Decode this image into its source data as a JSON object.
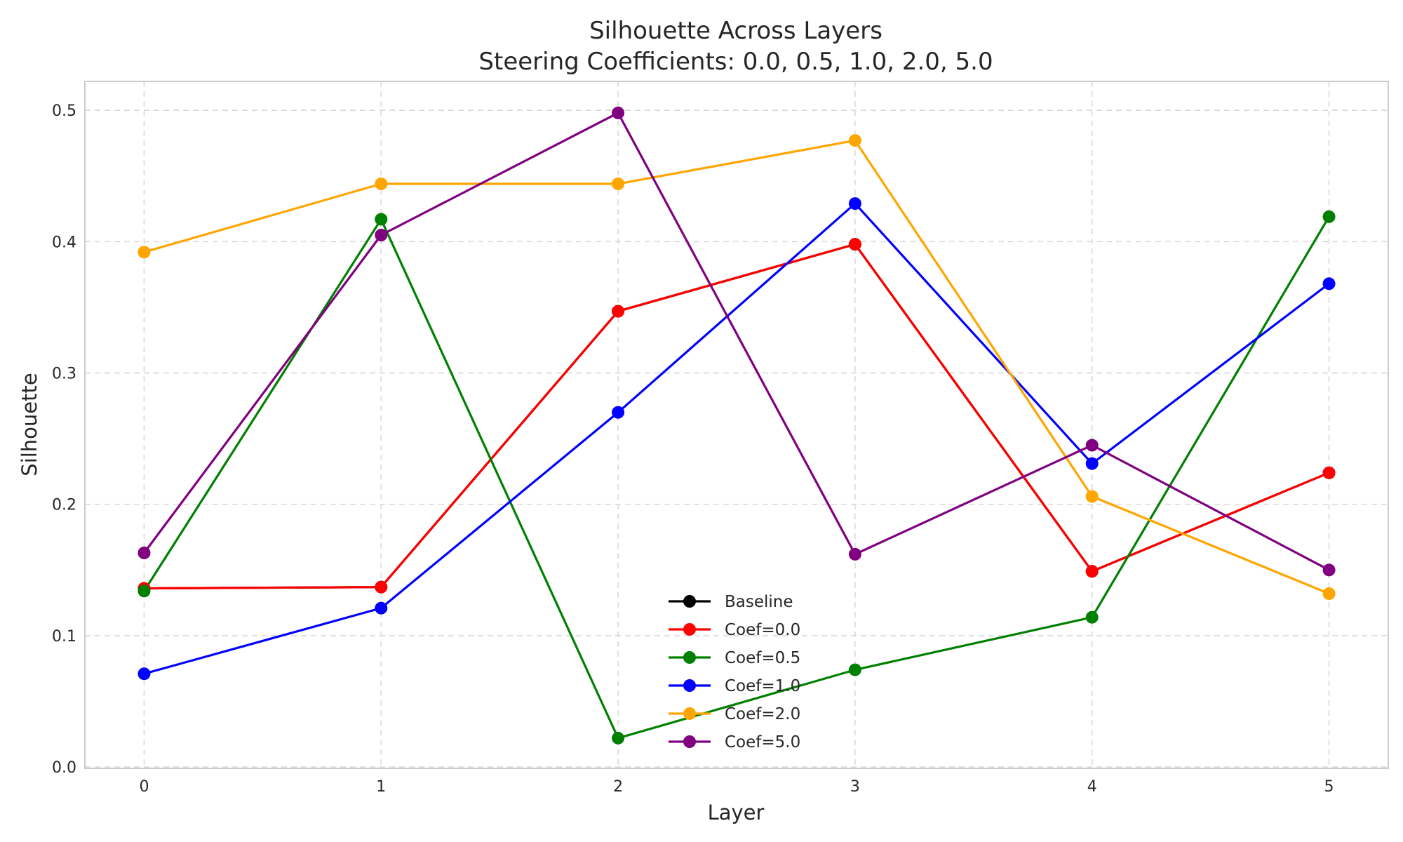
{
  "chart_data": {
    "type": "line",
    "title": "Silhouette Across Layers",
    "subtitle": "Steering Coefficients: 0.0, 0.5, 1.0, 2.0, 5.0",
    "xlabel": "Layer",
    "ylabel": "Silhouette",
    "x": [
      0,
      1,
      2,
      3,
      4,
      5
    ],
    "xlim": [
      -0.25,
      5.25
    ],
    "ylim": [
      -0.001,
      0.522
    ],
    "yticks": [
      0.0,
      0.1,
      0.2,
      0.3,
      0.4,
      0.5
    ],
    "ytick_labels": [
      "0.0",
      "0.1",
      "0.2",
      "0.3",
      "0.4",
      "0.5"
    ],
    "xtick_labels": [
      "0",
      "1",
      "2",
      "3",
      "4",
      "5"
    ],
    "grid": true,
    "legend_position": "lower-center",
    "series": [
      {
        "name": "Baseline",
        "color": "#000000",
        "values": [
          0.136,
          0.137,
          0.347,
          0.398,
          0.149,
          0.224
        ]
      },
      {
        "name": "Coef=0.0",
        "color": "#ff0000",
        "values": [
          0.136,
          0.137,
          0.347,
          0.398,
          0.149,
          0.224
        ]
      },
      {
        "name": "Coef=0.5",
        "color": "#008000",
        "values": [
          0.134,
          0.417,
          0.022,
          0.074,
          0.114,
          0.419
        ]
      },
      {
        "name": "Coef=1.0",
        "color": "#0000ff",
        "values": [
          0.071,
          0.121,
          0.27,
          0.429,
          0.231,
          0.368
        ]
      },
      {
        "name": "Coef=2.0",
        "color": "#ffa500",
        "values": [
          0.392,
          0.444,
          0.444,
          0.477,
          0.206,
          0.132
        ]
      },
      {
        "name": "Coef=5.0",
        "color": "#800080",
        "values": [
          0.163,
          0.405,
          0.498,
          0.162,
          0.245,
          0.15
        ]
      }
    ]
  }
}
